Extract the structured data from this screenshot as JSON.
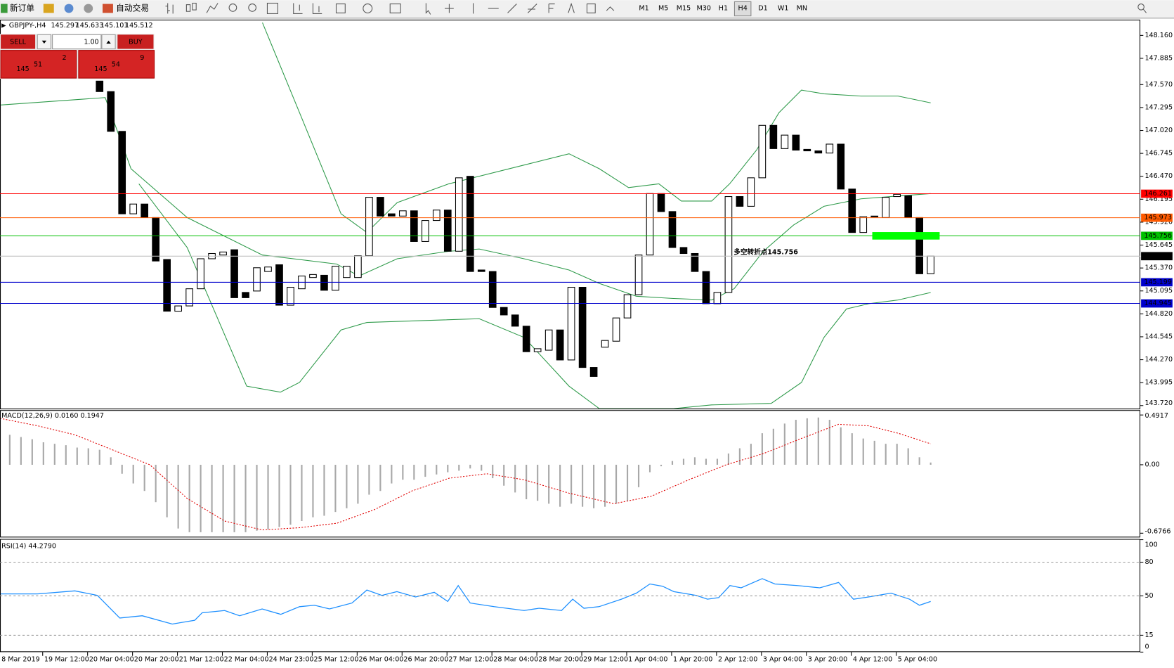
{
  "toolbar": {
    "new_order": "新订单",
    "auto_trade": "自动交易",
    "timeframes": [
      "M1",
      "M5",
      "M15",
      "M30",
      "H1",
      "H4",
      "D1",
      "W1",
      "MN"
    ],
    "active_timeframe": "H4"
  },
  "trade_panel": {
    "sell": "SELL",
    "buy": "BUY",
    "lots": "1.00",
    "bid": {
      "big": "145",
      "main": "51",
      "sup": "2"
    },
    "ask": {
      "big": "145",
      "main": "54",
      "sup": "9"
    }
  },
  "chart_data": [
    {
      "type": "candlestick",
      "symbol": "GBPJPY-,H4",
      "ohlc": [
        145.297,
        145.633,
        145.101,
        145.512
      ],
      "annotation": "多空转折点145.756",
      "xlim": [
        -8.867,
        92.667
      ],
      "ylim": [
        143.684,
        148.34
      ],
      "yticks": [
        {
          "value": 148.16,
          "label": "148.160"
        },
        147.885,
        {
          "value": 147.57,
          "label": "147.570"
        },
        147.295,
        {
          "value": 147.02,
          "label": "147.020"
        },
        146.745,
        {
          "value": 146.47,
          "label": "146.470"
        },
        146.195,
        {
          "value": 145.92,
          "label": "145.920"
        },
        145.645,
        {
          "value": 145.37,
          "label": "145.370"
        },
        145.095,
        {
          "value": 144.82,
          "label": "144.820"
        },
        144.545,
        {
          "value": 144.27,
          "label": "144.270"
        },
        143.995,
        {
          "value": 143.72,
          "label": "143.720"
        }
      ],
      "open": [
        147.612,
        147.486,
        147.009,
        146.02,
        146.137,
        145.975,
        145.472,
        144.852,
        144.915,
        145.121,
        145.481,
        145.526,
        145.589,
        145.077,
        145.094,
        145.328,
        145.409,
        144.924,
        145.121,
        145.256,
        145.283,
        145.103,
        145.256,
        145.256,
        145.517,
        146.218,
        146.02,
        145.993,
        146.056,
        145.688,
        145.94,
        146.065,
        145.571,
        146.47,
        145.346,
        145.328,
        144.897,
        144.807,
        144.672,
        144.366,
        144.384,
        144.627,
        144.267,
        145.139,
        144.177,
        144.42,
        144.492,
        144.771,
        145.05,
        145.526,
        146.263,
        146.047,
        145.616,
        145.544,
        145.328,
        144.942,
        145.077,
        146.227,
        146.11,
        146.452,
        147.081,
        146.802,
        146.964,
        146.793,
        146.775,
        146.749,
        146.856,
        146.317,
        145.796,
        145.985,
        145.975,
        146.227,
        146.236,
        145.975,
        145.301
      ],
      "close": [
        147.486,
        147.009,
        146.02,
        146.137,
        145.975,
        145.454,
        144.852,
        144.915,
        145.121,
        145.481,
        145.544,
        145.562,
        145.014,
        145.014,
        145.373,
        145.382,
        144.924,
        145.139,
        145.274,
        145.292,
        145.103,
        145.391,
        145.391,
        145.517,
        146.218,
        145.993,
        145.993,
        146.056,
        145.688,
        145.94,
        146.065,
        145.571,
        146.452,
        145.328,
        145.328,
        144.897,
        144.807,
        144.672,
        144.366,
        144.402,
        144.627,
        144.267,
        145.139,
        144.177,
        144.069,
        144.501,
        144.771,
        145.05,
        145.526,
        146.263,
        146.047,
        145.616,
        145.544,
        145.328,
        144.942,
        145.077,
        146.227,
        146.11,
        146.452,
        147.081,
        146.802,
        146.964,
        146.784,
        146.775,
        146.749,
        146.856,
        146.317,
        145.796,
        145.985,
        145.993,
        146.218,
        146.254,
        145.975,
        145.301,
        145.512
      ],
      "bands": [
        {
          "color": "#2e9a4a",
          "x": [
            14.5,
            17.8,
            21.5,
            23.8,
            26.5,
            31.1,
            37.8,
            41.8,
            44.5,
            47.1,
            49.8,
            51.8,
            54.5,
            56.1,
            58.5,
            60.5,
            62.5,
            64.5,
            67.8,
            71.1,
            74
          ],
          "values": [
            148.313,
            147.234,
            146.02,
            145.796,
            146.155,
            146.38,
            146.605,
            146.74,
            146.56,
            146.335,
            146.38,
            146.173,
            146.173,
            146.38,
            146.785,
            147.234,
            147.504,
            147.459,
            147.432,
            147.432,
            147.351
          ]
        },
        {
          "color": "#2e9a4a",
          "x": [
            -8.9,
            0.5,
            2.8,
            7.8,
            14.5,
            21.1,
            23.1,
            26.5,
            31.1,
            33.8,
            37.8,
            41.8,
            44.5,
            47.8,
            51.1,
            54.5,
            56.5,
            59.1,
            61.8,
            64.5,
            67.8,
            74
          ],
          "values": [
            147.324,
            147.414,
            146.56,
            145.975,
            145.526,
            145.418,
            145.274,
            145.481,
            145.571,
            145.598,
            145.481,
            145.346,
            145.184,
            145.031,
            145.004,
            144.986,
            145.121,
            145.571,
            145.886,
            146.11,
            146.2,
            146.263
          ]
        },
        {
          "color": "#2e9a4a",
          "x": [
            3.5,
            7.8,
            13.1,
            16.1,
            17.8,
            21.5,
            23.8,
            27.8,
            33.8,
            37.8,
            41.8,
            44.5,
            51.1,
            54.5,
            59.8,
            62.5,
            64.5,
            66.5,
            68.5,
            71.1,
            74
          ],
          "values": [
            146.38,
            145.616,
            143.953,
            143.881,
            143.998,
            144.627,
            144.717,
            144.735,
            144.762,
            144.537,
            143.953,
            143.683,
            143.683,
            143.728,
            143.746,
            143.998,
            144.537,
            144.879,
            144.942,
            144.986,
            145.076
          ]
        }
      ],
      "levels": [
        {
          "value": 146.261,
          "color": "#ff0000"
        },
        {
          "value": 145.973,
          "color": "#ff5a00"
        },
        {
          "value": 145.756,
          "color": "#00c000"
        },
        {
          "value": 145.512,
          "color": "#000000"
        },
        {
          "value": 145.199,
          "color": "#0000cc"
        },
        {
          "value": 144.945,
          "color": "#0000cc"
        }
      ]
    },
    {
      "type": "macd",
      "label": "MACD(12,26,9) 0.0160 0.1947",
      "xlim": [
        -8.867,
        92.667
      ],
      "ylim": [
        -0.711,
        0.533
      ],
      "yticks": [
        0.4917,
        {
          "value": 0,
          "label": "0.00"
        },
        -0.6766
      ],
      "histogram": {
        "color": "#a8a8a8",
        "start": -8,
        "values": [
          0.296,
          0.274,
          0.252,
          0.222,
          0.207,
          0.193,
          0.17,
          0.163,
          0.148,
          0.074,
          -0.089,
          -0.185,
          -0.259,
          -0.37,
          -0.519,
          -0.63,
          -0.667,
          -0.667,
          -0.667,
          -0.667,
          -0.667,
          -0.667,
          -0.652,
          -0.637,
          -0.615,
          -0.593,
          -0.556,
          -0.519,
          -0.504,
          -0.467,
          -0.43,
          -0.385,
          -0.296,
          -0.259,
          -0.185,
          -0.148,
          -0.148,
          -0.119,
          -0.096,
          -0.074,
          -0.059,
          -0.037,
          -0.059,
          -0.133,
          -0.207,
          -0.274,
          -0.341,
          -0.356,
          -0.385,
          -0.415,
          -0.385,
          -0.415,
          -0.43,
          -0.415,
          -0.385,
          -0.356,
          -0.222,
          -0.074,
          -0.015,
          0.037,
          0.059,
          0.074,
          0.059,
          0.059,
          0.111,
          0.163,
          0.207,
          0.311,
          0.356,
          0.407,
          0.444,
          0.459,
          0.467,
          0.444,
          0.37,
          0.311,
          0.259,
          0.237,
          0.207,
          0.207,
          0.163,
          0.074,
          0.022
        ]
      },
      "signal": {
        "color": "#e00000",
        "x": [
          -8.87,
          -5.53,
          -2.2,
          1.13,
          4.47,
          7.8,
          11.13,
          14.47,
          17.8,
          21.13,
          24.47,
          27.8,
          31.13,
          34.47,
          37.8,
          41.8,
          45.8,
          49.13,
          52.47,
          55.8,
          59.13,
          62.47,
          65.8,
          68.47,
          71.13,
          74
        ],
        "values": [
          0.459,
          0.385,
          0.296,
          0.148,
          0,
          -0.333,
          -0.556,
          -0.644,
          -0.622,
          -0.578,
          -0.444,
          -0.259,
          -0.133,
          -0.089,
          -0.148,
          -0.281,
          -0.385,
          -0.311,
          -0.148,
          0,
          0.111,
          0.259,
          0.4,
          0.385,
          0.311,
          0.207
        ]
      }
    },
    {
      "type": "rsi",
      "label": "RSI(14) 44.2790",
      "xlim": [
        -8.867,
        92.667
      ],
      "ylim": [
        0,
        100
      ],
      "yticks": [
        100,
        80,
        50,
        15,
        0
      ],
      "line": {
        "color": "#1e90ff",
        "x": [
          -8.87,
          -5.53,
          -2.2,
          -0.2,
          1.8,
          3.8,
          6.47,
          8.47,
          9.13,
          11.13,
          12.47,
          14.47,
          16.13,
          17.8,
          19.13,
          20.47,
          22.47,
          23.8,
          25.13,
          26.47,
          28.13,
          29.8,
          31,
          31.93,
          33,
          35.13,
          37.8,
          39.13,
          41.13,
          42.13,
          43.13,
          44.47,
          46.47,
          47.8,
          49,
          50.13,
          51.13,
          53.13,
          54.13,
          55.13,
          56.13,
          57.13,
          59,
          60.13,
          62.13,
          64.13,
          65.8,
          67.13,
          68.47,
          70.47,
          72.13,
          73,
          74
        ],
        "values": [
          51.8,
          51.8,
          54.5,
          50.5,
          30.3,
          32.3,
          24.9,
          28.3,
          35.0,
          37.0,
          32.3,
          38.4,
          33.6,
          40.4,
          41.7,
          38.4,
          43.7,
          55.2,
          50.5,
          53.8,
          49.1,
          53.2,
          45.1,
          59.2,
          43.7,
          40.4,
          37.0,
          39.0,
          37.0,
          47.1,
          39.0,
          40.4,
          47.1,
          52.5,
          60.6,
          58.6,
          53.8,
          50.5,
          47.1,
          48.5,
          59.2,
          57.2,
          65.3,
          60.6,
          59.2,
          57.2,
          61.9,
          47.1,
          49.1,
          52.5,
          47.1,
          41.7,
          45.1
        ]
      }
    }
  ],
  "time_axis": [
    "8 Mar 2019",
    "19 Mar 12:00",
    "20 Mar 04:00",
    "20 Mar 20:00",
    "21 Mar 12:00",
    "22 Mar 04:00",
    "24 Mar 23:00",
    "25 Mar 12:00",
    "26 Mar 04:00",
    "26 Mar 20:00",
    "27 Mar 12:00",
    "28 Mar 04:00",
    "28 Mar 20:00",
    "29 Mar 12:00",
    "1 Apr 04:00",
    "1 Apr 20:00",
    "2 Apr 12:00",
    "3 Apr 04:00",
    "3 Apr 20:00",
    "4 Apr 12:00",
    "5 Apr 04:00"
  ]
}
